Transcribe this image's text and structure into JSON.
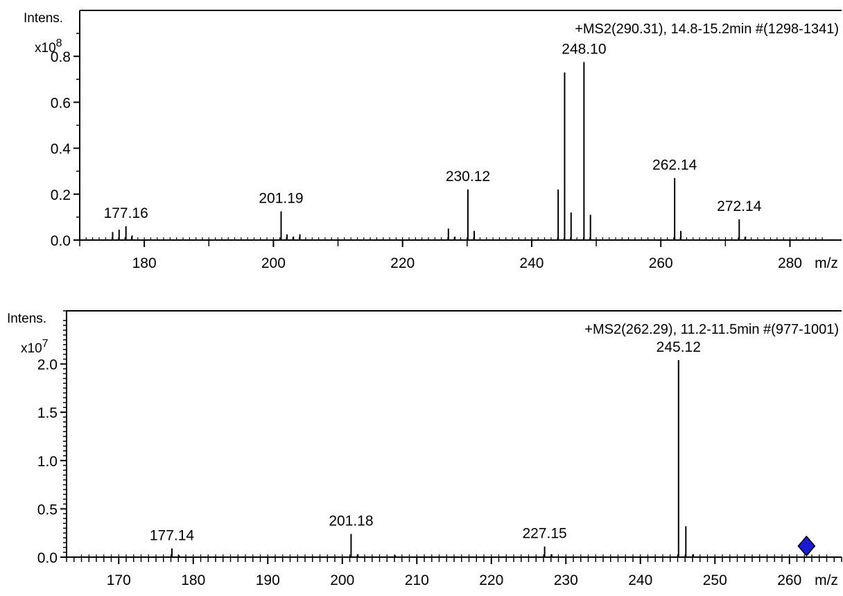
{
  "colors": {
    "axis": "#000000",
    "peak": "#000000",
    "precursor_marker": "#1a1ad6"
  },
  "chart_data": [
    {
      "type": "bar",
      "title": "+MS2(290.31), 14.8-15.2min #(1298-1341)",
      "ylabel": "Intens.",
      "yscale_label": "x10",
      "yscale_exp": "8",
      "xunit": "m/z",
      "xlim": [
        170,
        288
      ],
      "ylim": [
        0,
        1.0
      ],
      "xticks": [
        180,
        200,
        220,
        240,
        260,
        280
      ],
      "xtick_labels": [
        "180",
        "200",
        "220",
        "240",
        "260",
        "280"
      ],
      "yticks": [
        0.0,
        0.2,
        0.4,
        0.6,
        0.8
      ],
      "ytick_labels": [
        "0.0",
        "0.2",
        "0.4",
        "0.6",
        "0.8"
      ],
      "precursor_mz": 290.31,
      "peaks": [
        {
          "mz": 175.1,
          "y": 0.035
        },
        {
          "mz": 176.1,
          "y": 0.045
        },
        {
          "mz": 177.16,
          "y": 0.06,
          "label": "177.16"
        },
        {
          "mz": 178.1,
          "y": 0.02
        },
        {
          "mz": 201.19,
          "y": 0.125,
          "label": "201.19"
        },
        {
          "mz": 202.1,
          "y": 0.025
        },
        {
          "mz": 203.1,
          "y": 0.015
        },
        {
          "mz": 204.1,
          "y": 0.025
        },
        {
          "mz": 227.1,
          "y": 0.05
        },
        {
          "mz": 228.1,
          "y": 0.015
        },
        {
          "mz": 230.12,
          "y": 0.22,
          "label": "230.12"
        },
        {
          "mz": 231.1,
          "y": 0.04
        },
        {
          "mz": 244.1,
          "y": 0.22
        },
        {
          "mz": 245.1,
          "y": 0.73
        },
        {
          "mz": 246.1,
          "y": 0.12
        },
        {
          "mz": 248.1,
          "y": 0.775,
          "label": "248.10"
        },
        {
          "mz": 249.1,
          "y": 0.11
        },
        {
          "mz": 262.14,
          "y": 0.27,
          "label": "262.14"
        },
        {
          "mz": 263.1,
          "y": 0.04
        },
        {
          "mz": 272.14,
          "y": 0.09,
          "label": "272.14"
        },
        {
          "mz": 273.1,
          "y": 0.015
        }
      ]
    },
    {
      "type": "bar",
      "title": "+MS2(262.29), 11.2-11.5min #(977-1001)",
      "ylabel": "Intens.",
      "yscale_label": "x10",
      "yscale_exp": "7",
      "xunit": "m/z",
      "xlim": [
        163,
        267
      ],
      "ylim": [
        0,
        2.55
      ],
      "xticks": [
        170,
        180,
        190,
        200,
        210,
        220,
        230,
        240,
        250,
        260
      ],
      "xtick_labels": [
        "170",
        "180",
        "190",
        "200",
        "210",
        "220",
        "230",
        "240",
        "250",
        "260"
      ],
      "yticks": [
        0.0,
        0.5,
        1.0,
        1.5,
        2.0
      ],
      "ytick_labels": [
        "0.0",
        "0.5",
        "1.0",
        "1.5",
        "2.0"
      ],
      "precursor_mz": 262.29,
      "peaks": [
        {
          "mz": 177.14,
          "y": 0.09,
          "label": "177.14"
        },
        {
          "mz": 178.1,
          "y": 0.02
        },
        {
          "mz": 201.18,
          "y": 0.24,
          "label": "201.18"
        },
        {
          "mz": 202.1,
          "y": 0.03
        },
        {
          "mz": 207.1,
          "y": 0.02
        },
        {
          "mz": 227.15,
          "y": 0.11,
          "label": "227.15"
        },
        {
          "mz": 228.1,
          "y": 0.03
        },
        {
          "mz": 245.12,
          "y": 2.04,
          "label": "245.12"
        },
        {
          "mz": 246.1,
          "y": 0.32
        },
        {
          "mz": 247.1,
          "y": 0.03
        }
      ]
    }
  ]
}
